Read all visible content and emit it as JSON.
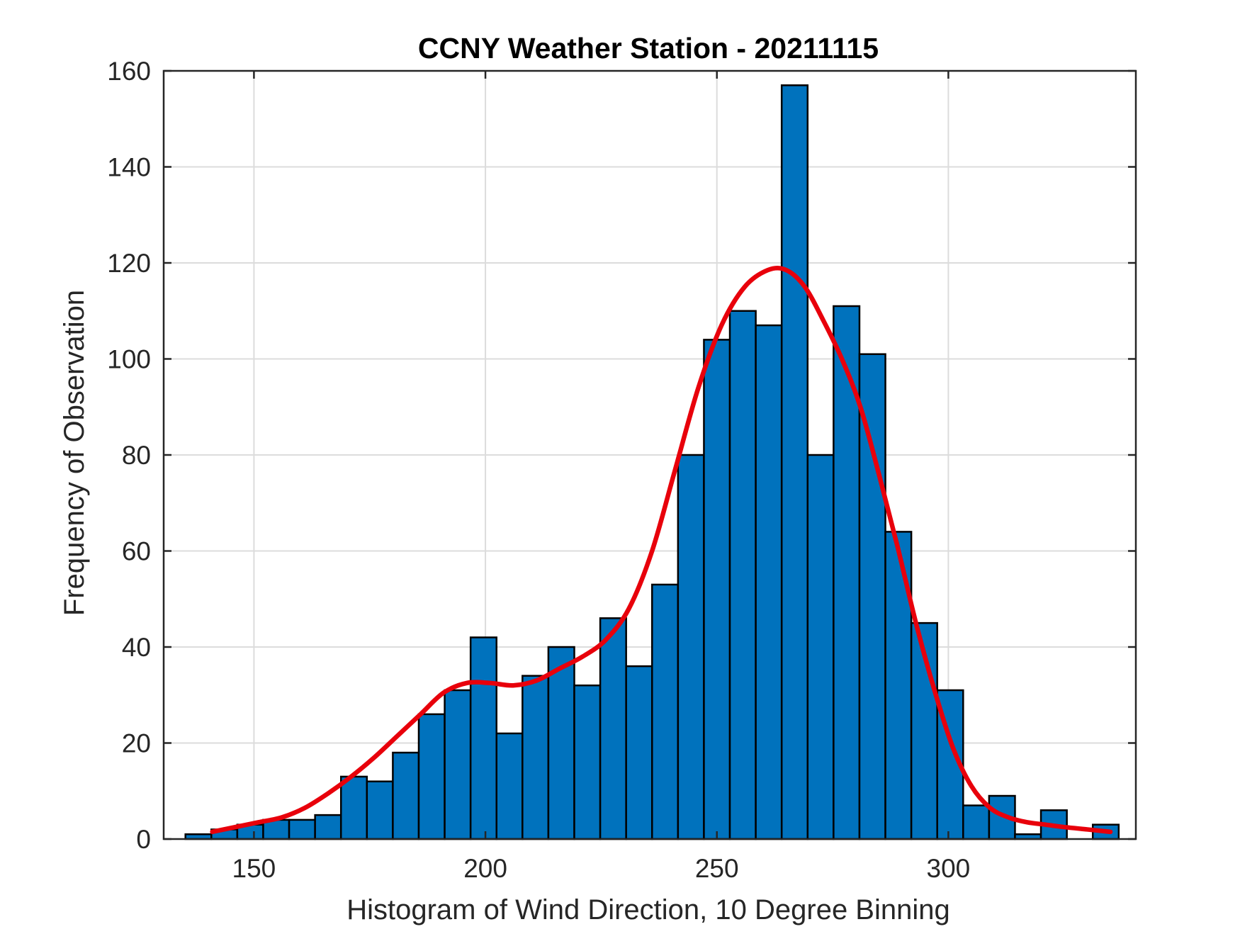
{
  "chart_data": {
    "type": "bar",
    "title": "CCNY Weather Station - 20211115",
    "xlabel": "Histogram of Wind Direction, 10 Degree Binning",
    "ylabel": "Frequency of Observation",
    "xlim": [
      130.5,
      340.5
    ],
    "ylim": [
      0,
      160
    ],
    "xticks": [
      150,
      200,
      250,
      300
    ],
    "yticks": [
      0,
      20,
      40,
      60,
      80,
      100,
      120,
      140,
      160
    ],
    "grid": true,
    "bin_width": 5.6,
    "bin_start": 135.2,
    "values": [
      1,
      2,
      3,
      4,
      4,
      5,
      13,
      12,
      18,
      26,
      31,
      42,
      22,
      34,
      40,
      32,
      46,
      36,
      53,
      80,
      104,
      110,
      107,
      157,
      80,
      111,
      101,
      64,
      45,
      31,
      7,
      9,
      1,
      6,
      0,
      3
    ],
    "fit_curve": {
      "x": [
        141,
        146,
        151,
        156,
        161,
        166,
        171,
        176,
        181,
        186,
        191,
        196,
        201,
        206,
        211,
        216,
        221,
        226,
        231,
        236,
        241,
        246,
        251,
        256,
        261,
        265,
        269,
        273,
        277,
        281,
        285,
        289,
        293,
        297,
        301,
        305,
        309,
        313,
        317,
        321,
        325,
        330,
        335
      ],
      "y": [
        1.5,
        2.5,
        3.5,
        4.5,
        6.5,
        9.5,
        13,
        17,
        21.5,
        26,
        30.5,
        32.5,
        32.5,
        32,
        33,
        35.5,
        38,
        41.5,
        48,
        60,
        77,
        94,
        107,
        115,
        118.5,
        118.5,
        115,
        108,
        100,
        90,
        76,
        61,
        45,
        31,
        19,
        11,
        6.5,
        4.5,
        3.5,
        3,
        2.5,
        2,
        1.5
      ]
    },
    "colors": {
      "bar_fill": "#0072BD",
      "bar_edge": "#000000",
      "fit_line": "#E8000B",
      "grid": "#DCDCDC",
      "axes": "#262626"
    }
  }
}
